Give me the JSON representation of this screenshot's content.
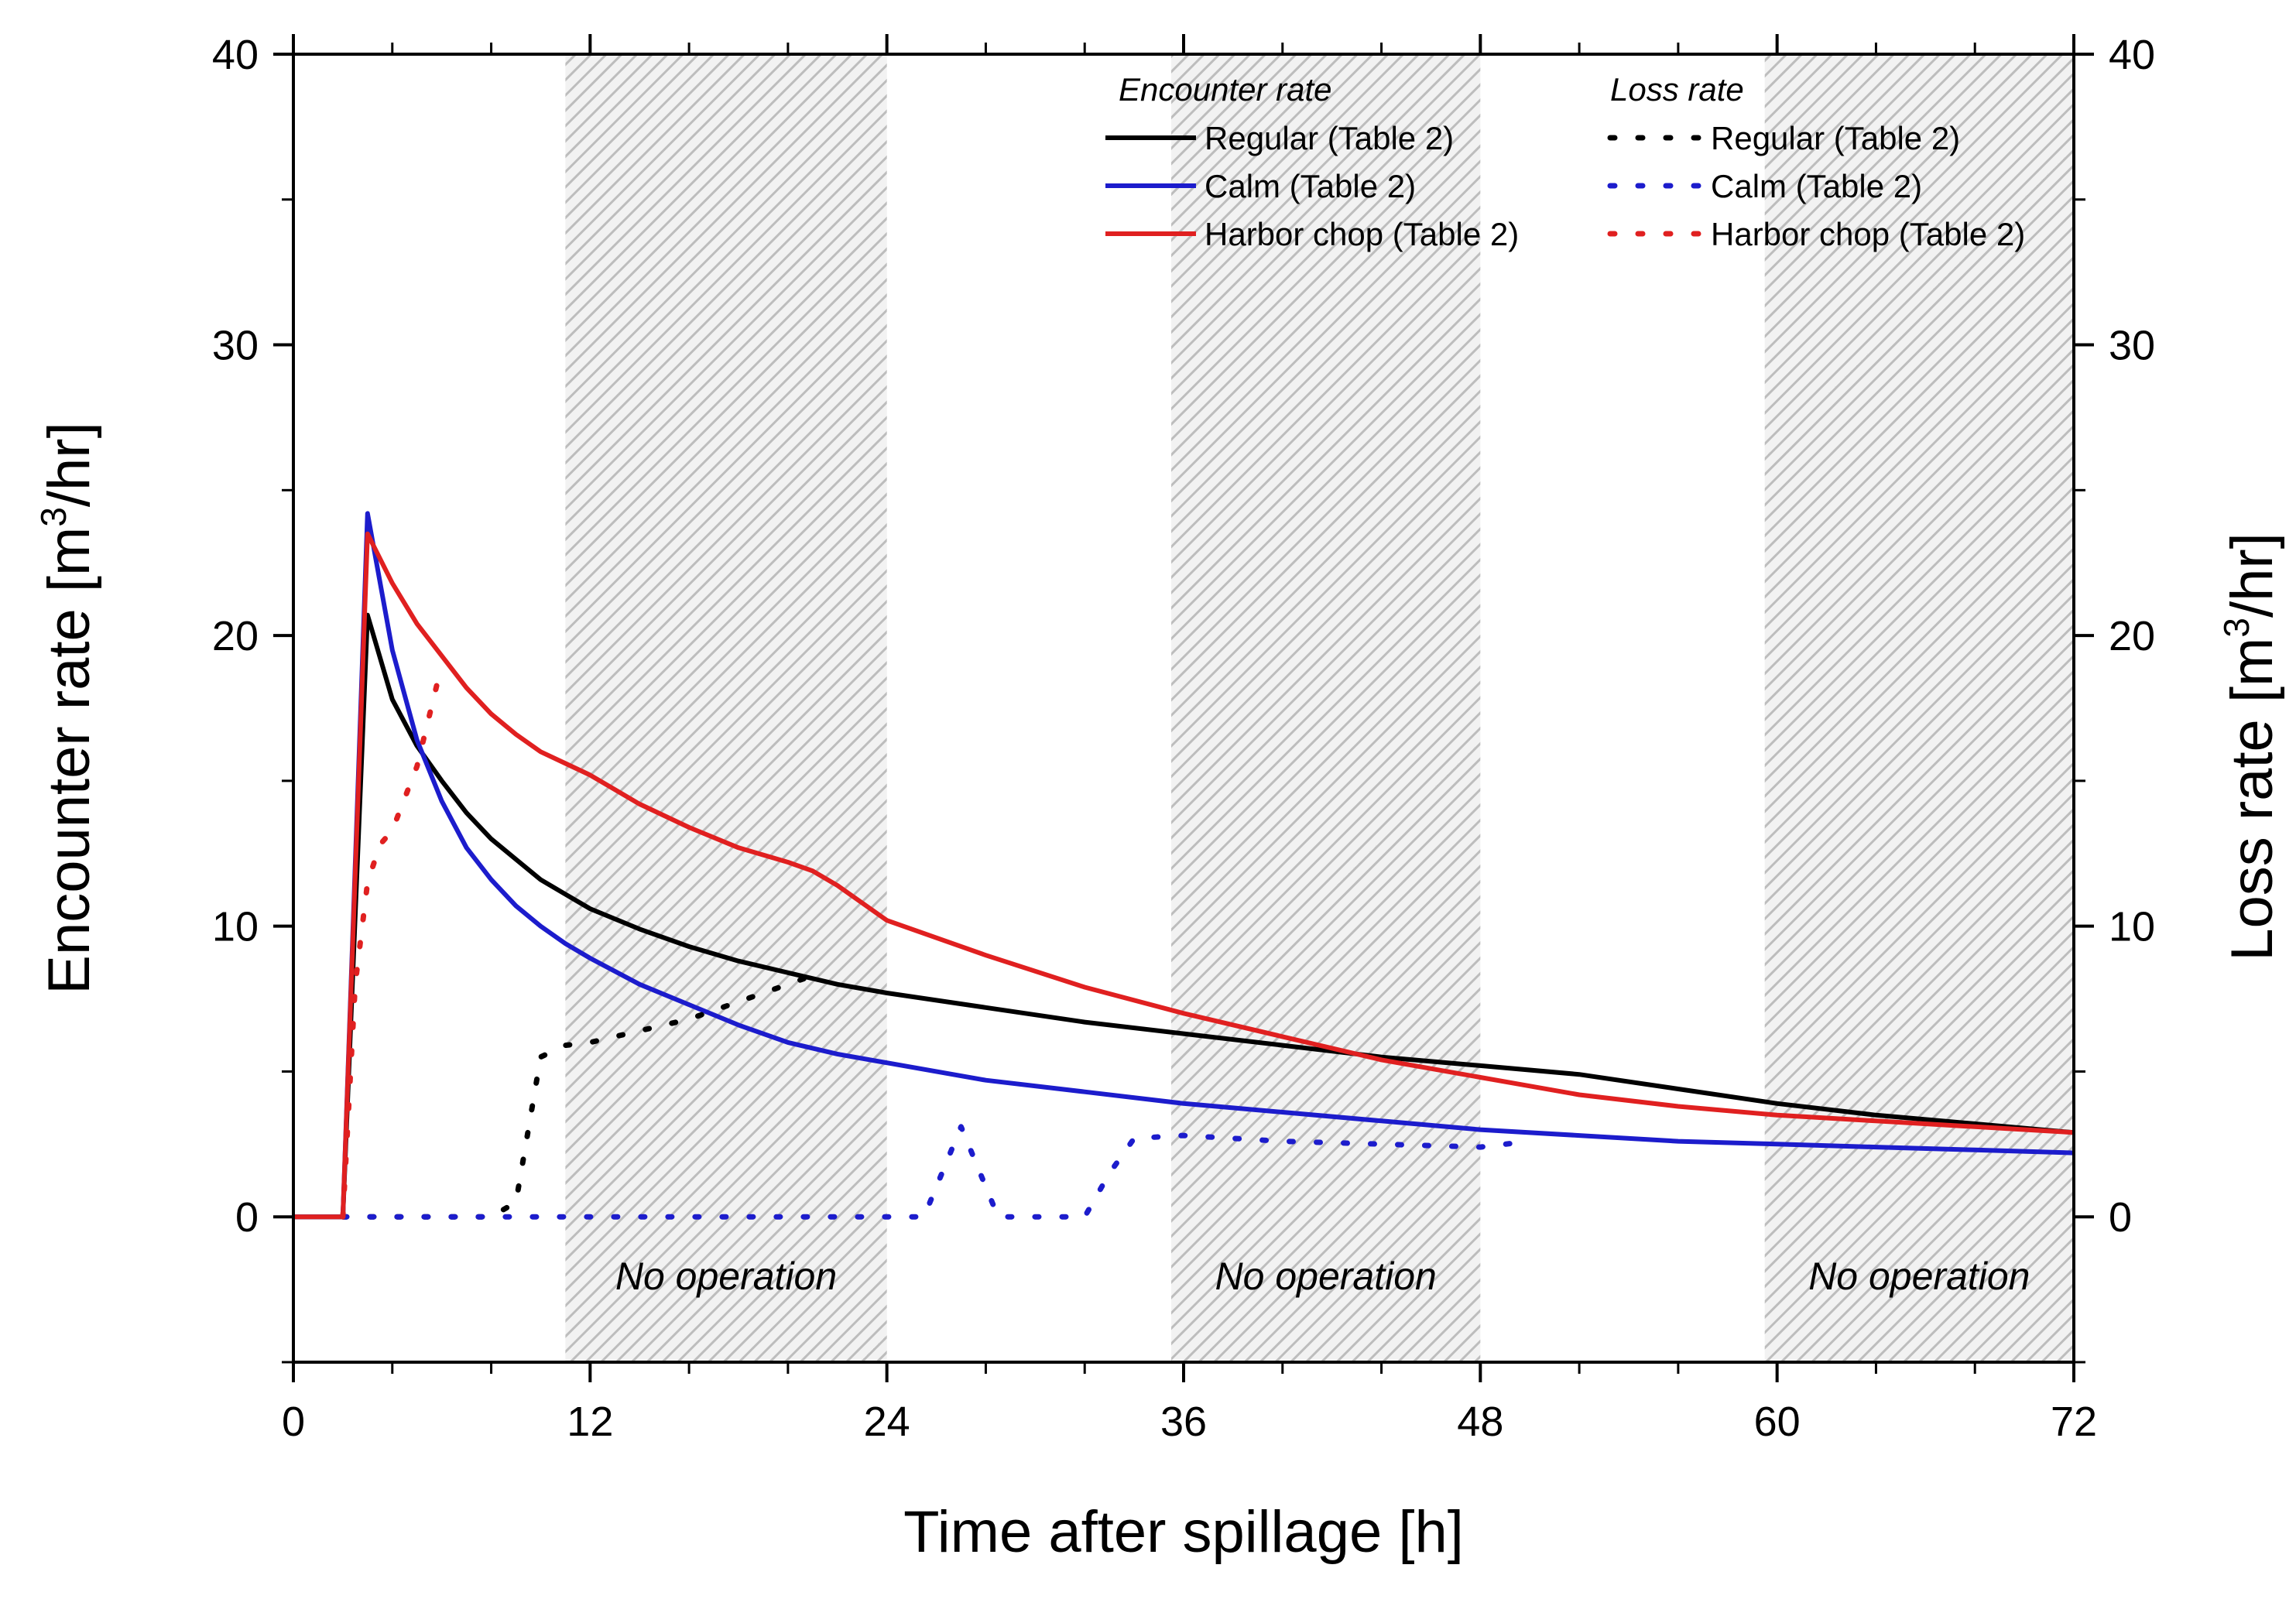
{
  "chart_data": {
    "type": "line",
    "xlabel": "Time after spillage [h]",
    "ylabel_left": "Encounter rate [m³/hr]",
    "ylabel_left_base": "Encounter rate [m",
    "ylabel_left_sup": "3",
    "ylabel_left_tail": "/hr]",
    "ylabel_right": "Loss rate [m³/hr]",
    "ylabel_right_base": "Loss rate [m",
    "ylabel_right_sup": "3",
    "ylabel_right_tail": "/hr]",
    "xlim": [
      0,
      72
    ],
    "ylim": [
      -5,
      40
    ],
    "x_ticks": [
      0,
      12,
      24,
      36,
      48,
      60,
      72
    ],
    "y_ticks": [
      0,
      10,
      20,
      30,
      40
    ],
    "grid": false,
    "shaded_bands": [
      {
        "start": 11,
        "end": 24,
        "label": "No operation"
      },
      {
        "start": 35.5,
        "end": 48,
        "label": "No operation"
      },
      {
        "start": 59.5,
        "end": 72,
        "label": "No operation"
      }
    ],
    "legend": {
      "placement": "top-right",
      "encounter_heading": "Encounter rate",
      "loss_heading": "Loss rate",
      "entries": [
        "Regular (Table 2)",
        "Calm (Table 2)",
        "Harbor chop (Table 2)"
      ]
    },
    "series": [
      {
        "name": "Regular (Table 2)",
        "group": "Encounter rate",
        "style": "solid",
        "color": "#000000",
        "x": [
          0,
          2,
          3,
          4,
          5,
          6,
          7,
          8,
          9,
          10,
          11,
          12,
          14,
          16,
          18,
          20,
          22,
          24,
          28,
          32,
          36,
          40,
          44,
          48,
          52,
          56,
          60,
          64,
          68,
          72
        ],
        "y": [
          0,
          0,
          20.7,
          17.8,
          16.2,
          15.0,
          13.9,
          13.0,
          12.3,
          11.6,
          11.1,
          10.6,
          9.9,
          9.3,
          8.8,
          8.4,
          8.0,
          7.7,
          7.2,
          6.7,
          6.3,
          5.9,
          5.5,
          5.2,
          4.9,
          4.4,
          3.9,
          3.5,
          3.2,
          2.9
        ]
      },
      {
        "name": "Calm (Table 2)",
        "group": "Encounter rate",
        "style": "solid",
        "color": "#1c1ccc",
        "x": [
          0,
          2,
          3,
          4,
          5,
          6,
          7,
          8,
          9,
          10,
          11,
          12,
          14,
          16,
          18,
          20,
          22,
          24,
          28,
          32,
          36,
          40,
          44,
          48,
          52,
          56,
          60,
          64,
          68,
          72
        ],
        "y": [
          0,
          0,
          24.2,
          19.5,
          16.4,
          14.3,
          12.7,
          11.6,
          10.7,
          10.0,
          9.4,
          8.9,
          8.0,
          7.3,
          6.6,
          6.0,
          5.6,
          5.3,
          4.7,
          4.3,
          3.9,
          3.6,
          3.3,
          3.0,
          2.8,
          2.6,
          2.5,
          2.4,
          2.3,
          2.2
        ]
      },
      {
        "name": "Harbor chop (Table 2)",
        "group": "Encounter rate",
        "style": "solid",
        "color": "#e02020",
        "x": [
          0,
          2,
          3,
          4,
          5,
          6,
          7,
          8,
          9,
          10,
          11,
          12,
          14,
          16,
          18,
          20,
          21,
          22,
          24,
          28,
          32,
          36,
          40,
          44,
          48,
          52,
          56,
          60,
          64,
          68,
          72
        ],
        "y": [
          0,
          0,
          23.5,
          21.8,
          20.4,
          19.3,
          18.2,
          17.3,
          16.6,
          16.0,
          15.6,
          15.2,
          14.2,
          13.4,
          12.7,
          12.2,
          11.9,
          11.4,
          10.2,
          9.0,
          7.9,
          7.0,
          6.2,
          5.4,
          4.8,
          4.2,
          3.8,
          3.5,
          3.3,
          3.1,
          2.9
        ]
      },
      {
        "name": "Regular (Table 2)",
        "group": "Loss rate",
        "style": "dotted",
        "color": "#000000",
        "x": [
          2,
          8,
          9,
          9.5,
          10,
          11,
          12,
          14,
          16,
          18,
          20,
          21
        ],
        "y": [
          0,
          0,
          0.5,
          3.0,
          5.5,
          5.9,
          6.0,
          6.4,
          6.8,
          7.4,
          8.0,
          8.3
        ]
      },
      {
        "name": "Calm (Table 2)",
        "group": "Loss rate",
        "style": "dotted",
        "color": "#1c1ccc",
        "x": [
          2,
          25.5,
          27,
          28.5,
          32,
          33,
          34,
          36,
          40,
          44,
          48,
          50
        ],
        "y": [
          0,
          0,
          3.1,
          0,
          0,
          1.5,
          2.7,
          2.8,
          2.6,
          2.5,
          2.4,
          2.6
        ]
      },
      {
        "name": "Harbor chop (Table 2)",
        "group": "Loss rate",
        "style": "dotted",
        "color": "#e02020",
        "x": [
          2,
          2.5,
          3,
          3.5,
          4,
          5,
          6
        ],
        "y": [
          0,
          8.0,
          11.5,
          12.8,
          13.3,
          15.5,
          19.0
        ]
      }
    ]
  }
}
